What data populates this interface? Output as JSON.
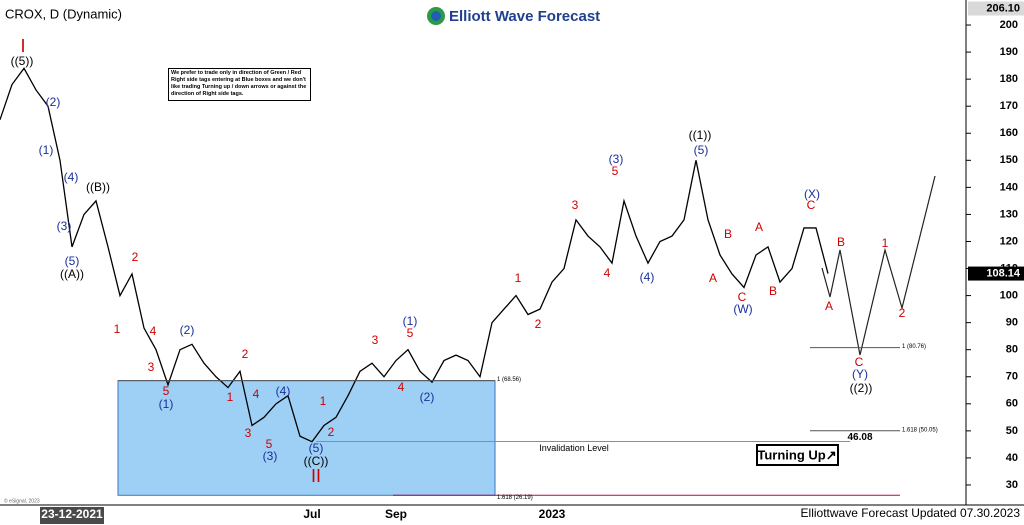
{
  "chart_data": {
    "type": "line",
    "title": "CROX, D (Dynamic)",
    "brand": "Elliott Wave Forecast",
    "footer": "Elliottwave Forecast Updated 07.30.2023",
    "copyright": "© eSignal, 2023",
    "button": "Turning Up↗",
    "note": "We prefer to trade only in direction of Green / Red Right side tags entering at Blue boxes and we don't like trading Turning up / down arrows or against the direction of Right side tags.",
    "color": "#000000",
    "categories": [
      null,
      null,
      null,
      null,
      null,
      null,
      "23-12-2021",
      null,
      null,
      null,
      null,
      null,
      null,
      null,
      null,
      null,
      null,
      null,
      null,
      null,
      null,
      null,
      null,
      null,
      null,
      null,
      "Jul",
      null,
      null,
      null,
      null,
      null,
      null,
      "Sep",
      null,
      null,
      null,
      null,
      null,
      null,
      null,
      null,
      null,
      null,
      null,
      null,
      "2023",
      null,
      null,
      null,
      null,
      null,
      null,
      null,
      null,
      null,
      null,
      null,
      null,
      null,
      null,
      null,
      null,
      null,
      null,
      null,
      null,
      null,
      null,
      null
    ],
    "values": [
      165,
      178,
      184,
      176,
      170,
      150,
      118,
      130,
      135,
      118,
      100,
      108,
      88,
      80,
      67,
      80,
      82,
      75,
      70,
      66,
      72,
      52,
      55,
      60,
      63,
      48,
      46,
      52,
      55,
      63,
      72,
      75,
      70,
      76,
      80,
      72,
      68,
      76,
      78,
      76,
      70,
      90,
      95,
      100,
      93,
      95,
      105,
      110,
      128,
      122,
      118,
      112,
      135,
      122,
      112,
      120,
      122,
      128,
      150,
      128,
      115,
      108,
      103,
      115,
      118,
      105,
      110,
      125,
      125,
      108.14
    ],
    "ylim": [
      22.6,
      207.4
    ],
    "yticks": [
      30,
      40,
      50,
      60,
      70,
      80,
      90,
      100,
      110,
      120,
      130,
      140,
      150,
      160,
      170,
      180,
      190,
      200
    ],
    "price_labels": [
      {
        "value": 206.1,
        "label": "206.10"
      },
      108.14
    ],
    "levels": [
      {
        "value": 68.56,
        "label": "1 (68.56)"
      },
      {
        "value": 80.76,
        "label": "1 (80.76)"
      },
      {
        "value": 50.05,
        "label": "1.618 (50.05)"
      },
      {
        "value": 26.19,
        "label": "1.618 (26.19)"
      }
    ],
    "invalidation": {
      "value": 46.08,
      "label": "46.08",
      "text": "Invalidation Level"
    },
    "annotations": [
      {
        "text": "I",
        "color": "#d00000"
      },
      {
        "text": "((5))",
        "color": "#000"
      },
      {
        "text": "(2)",
        "color": "#1a2f9a"
      },
      {
        "text": "(1)",
        "color": "#1a2f9a"
      },
      {
        "text": "(4)",
        "color": "#1a2f9a"
      },
      {
        "text": "((B))",
        "color": "#000"
      },
      {
        "text": "(3)",
        "color": "#1a2f9a"
      },
      {
        "text": "(5)",
        "color": "#1a2f9a"
      },
      {
        "text": "((A))",
        "color": "#000"
      },
      {
        "text": "2",
        "color": "#d00000"
      },
      {
        "text": "1",
        "color": "#d00000"
      },
      {
        "text": "4",
        "color": "#d00000"
      },
      {
        "text": "(2)",
        "color": "#1a2f9a"
      },
      {
        "text": "3",
        "color": "#d00000"
      },
      {
        "text": "5",
        "color": "#d00000"
      },
      {
        "text": "(1)",
        "color": "#1a2f9a"
      },
      {
        "text": "2",
        "color": "#d00000"
      },
      {
        "text": "1",
        "color": "#d00000"
      },
      {
        "text": "4",
        "color": "#d00000"
      },
      {
        "text": "(4)",
        "color": "#1a2f9a"
      },
      {
        "text": "3",
        "color": "#d00000"
      },
      {
        "text": "5",
        "color": "#d00000"
      },
      {
        "text": "(3)",
        "color": "#1a2f9a"
      },
      {
        "text": "1",
        "color": "#d00000"
      },
      {
        "text": "2",
        "color": "#d00000"
      },
      {
        "text": "(5)",
        "color": "#1a2f9a"
      },
      {
        "text": "((C))",
        "color": "#000"
      },
      {
        "text": "II",
        "color": "#d00000"
      },
      {
        "text": "3",
        "color": "#d00000"
      },
      {
        "text": "(1)",
        "color": "#1a2f9a"
      },
      {
        "text": "5",
        "color": "#d00000"
      },
      {
        "text": "4",
        "color": "#d00000"
      },
      {
        "text": "(2)",
        "color": "#1a2f9a"
      },
      {
        "text": "1",
        "color": "#d00000"
      },
      {
        "text": "2",
        "color": "#d00000"
      },
      {
        "text": "3",
        "color": "#d00000"
      },
      {
        "text": "(3)",
        "color": "#1a2f9a"
      },
      {
        "text": "5",
        "color": "#d00000"
      },
      {
        "text": "4",
        "color": "#d00000"
      },
      {
        "text": "(4)",
        "color": "#1a2f9a"
      },
      {
        "text": "((1))",
        "color": "#000"
      },
      {
        "text": "(5)",
        "color": "#1a2f9a"
      },
      {
        "text": "A",
        "color": "#d00000"
      },
      {
        "text": "B",
        "color": "#d00000"
      },
      {
        "text": "C",
        "color": "#d00000"
      },
      {
        "text": "(W)",
        "color": "#1a2f9a"
      },
      {
        "text": "A",
        "color": "#d00000"
      },
      {
        "text": "B",
        "color": "#d00000"
      },
      {
        "text": "(X)",
        "color": "#1a2f9a"
      },
      {
        "text": "C",
        "color": "#d00000"
      },
      {
        "text": "B",
        "color": "#d00000"
      },
      {
        "text": "A",
        "color": "#d00000"
      },
      {
        "text": "1",
        "color": "#d00000"
      },
      {
        "text": "2",
        "color": "#d00000"
      },
      {
        "text": "C",
        "color": "#d00000"
      },
      {
        "text": "(Y)",
        "color": "#1a2f9a"
      },
      {
        "text": "((2))",
        "color": "#000"
      }
    ]
  }
}
